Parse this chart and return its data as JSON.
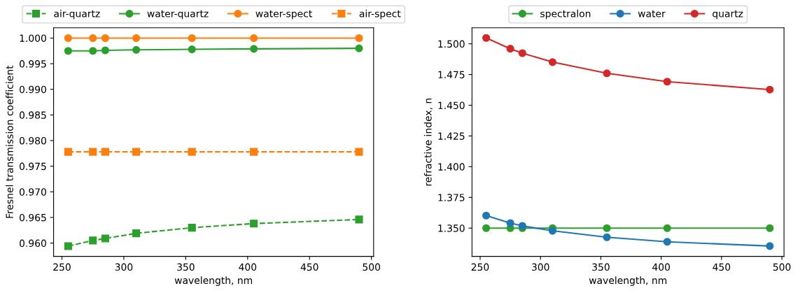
{
  "chart_data": [
    {
      "type": "line",
      "xlabel": "wavelength, nm",
      "ylabel": "Fresnel transmission coefficient",
      "xlim": [
        243.25,
        501.75
      ],
      "xticks": [
        250,
        300,
        350,
        400,
        450,
        500
      ],
      "ylim": [
        0.9574,
        1.002
      ],
      "yticks": [
        {
          "value": 0.96,
          "label": "0.960"
        },
        {
          "value": 0.965,
          "label": "0.965"
        },
        {
          "value": 0.97,
          "label": "0.970"
        },
        {
          "value": 0.975,
          "label": "0.975"
        },
        {
          "value": 0.98,
          "label": "0.980"
        },
        {
          "value": 0.985,
          "label": "0.985"
        },
        {
          "value": 0.99,
          "label": "0.990"
        },
        {
          "value": 0.995,
          "label": "0.995"
        },
        {
          "value": 1.0,
          "label": "1.000"
        }
      ],
      "legend": "top",
      "grid": false,
      "x": [
        255,
        275,
        285,
        310,
        355,
        405,
        490
      ],
      "series": [
        {
          "name": "air-quartz",
          "color": "#2ca02c",
          "marker": "square",
          "line_style": "dashed",
          "values": [
            0.9594,
            0.9605,
            0.9609,
            0.9619,
            0.963,
            0.9638,
            0.9646
          ]
        },
        {
          "name": "water-quartz",
          "color": "#2ca02c",
          "marker": "circle",
          "line_style": "solid",
          "values": [
            0.9975,
            0.9975,
            0.9976,
            0.9977,
            0.9978,
            0.9979,
            0.998
          ]
        },
        {
          "name": "water-spect",
          "color": "#ff7f0e",
          "marker": "circle",
          "line_style": "solid",
          "values": [
            1.0,
            1.0,
            1.0,
            1.0,
            1.0,
            1.0,
            1.0
          ]
        },
        {
          "name": "air-spect",
          "color": "#ff7f0e",
          "marker": "square",
          "line_style": "dashed",
          "values": [
            0.9778,
            0.9778,
            0.9778,
            0.9778,
            0.9778,
            0.9778,
            0.9778
          ]
        }
      ]
    },
    {
      "type": "line",
      "xlabel": "wavelength, nm",
      "ylabel": "refractive index, n",
      "xlim": [
        243.25,
        501.75
      ],
      "xticks": [
        250,
        300,
        350,
        400,
        450,
        500
      ],
      "ylim": [
        1.327,
        1.513
      ],
      "yticks": [
        {
          "value": 1.35,
          "label": "1.350"
        },
        {
          "value": 1.375,
          "label": "1.375"
        },
        {
          "value": 1.4,
          "label": "1.400"
        },
        {
          "value": 1.425,
          "label": "1.425"
        },
        {
          "value": 1.45,
          "label": "1.450"
        },
        {
          "value": 1.475,
          "label": "1.475"
        },
        {
          "value": 1.5,
          "label": "1.500"
        }
      ],
      "legend": "top",
      "grid": false,
      "x": [
        255,
        275,
        285,
        310,
        355,
        405,
        490
      ],
      "series": [
        {
          "name": "spectralon",
          "color": "#2ca02c",
          "marker": "circle",
          "line_style": "solid",
          "values": [
            1.35,
            1.35,
            1.35,
            1.35,
            1.35,
            1.35,
            1.35
          ]
        },
        {
          "name": "water",
          "color": "#1f77b4",
          "marker": "circle",
          "line_style": "solid",
          "values": [
            1.3602,
            1.3541,
            1.3518,
            1.3478,
            1.3426,
            1.3389,
            1.3354
          ]
        },
        {
          "name": "quartz",
          "color": "#d62728",
          "marker": "circle",
          "line_style": "solid",
          "values": [
            1.5048,
            1.496,
            1.4924,
            1.4851,
            1.476,
            1.4692,
            1.4627
          ]
        }
      ]
    }
  ]
}
